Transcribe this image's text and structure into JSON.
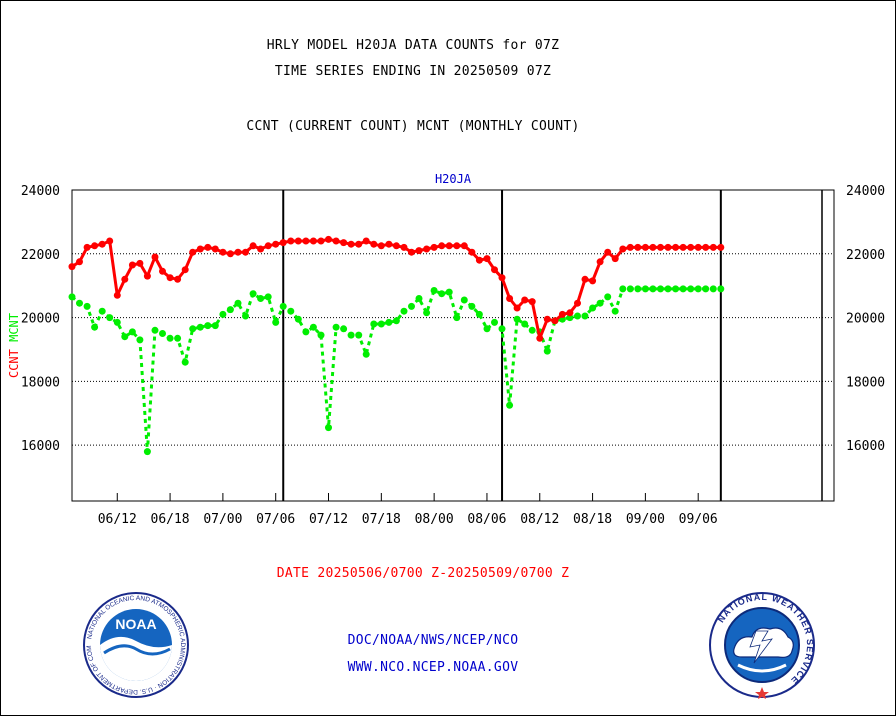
{
  "header": {
    "title_line1": "HRLY MODEL H20JA DATA COUNTS for 07Z",
    "title_line2": "TIME SERIES ENDING IN 20250509 07Z",
    "subtitle": "CCNT (CURRENT COUNT) MCNT (MONTHLY COUNT)"
  },
  "footer": {
    "date_range": "DATE 20250506/0700 Z-20250509/0700 Z",
    "org_path": "DOC/NOAA/NWS/NCEP/NCO",
    "website": "WWW.NCO.NCEP.NOAA.GOV"
  },
  "logos": {
    "left": {
      "name": "noaa-logo",
      "text": "NOAA",
      "ring_text": "NATIONAL OCEANIC AND ATMOSPHERIC ADMINISTRATION · U.S. DEPARTMENT OF COMMERCE"
    },
    "right": {
      "name": "nws-logo",
      "ring_text": "NATIONAL WEATHER SERVICE"
    }
  },
  "colors": {
    "ccnt": "#ff0000",
    "mcnt": "#00ee00",
    "axis_title": "#0000cc",
    "footer_red": "#ff0000",
    "footer_blue": "#0000cc"
  },
  "chart_data": {
    "type": "line",
    "title": "H20JA",
    "ylabel_ccnt": "CCNT",
    "ylabel_mcnt": "MCNT",
    "ylim": [
      14250,
      24000
    ],
    "yticks": [
      16000,
      18000,
      20000,
      22000,
      24000
    ],
    "yticks_right": [
      16000,
      18000,
      20000,
      22000,
      24000
    ],
    "xlim": [
      0,
      101
    ],
    "xticks": [
      {
        "label": "06/12",
        "pos": 6
      },
      {
        "label": "06/18",
        "pos": 13
      },
      {
        "label": "07/00",
        "pos": 20
      },
      {
        "label": "07/06",
        "pos": 27
      },
      {
        "label": "07/12",
        "pos": 34
      },
      {
        "label": "07/18",
        "pos": 41
      },
      {
        "label": "08/00",
        "pos": 48
      },
      {
        "label": "08/06",
        "pos": 55
      },
      {
        "label": "08/12",
        "pos": 62
      },
      {
        "label": "08/18",
        "pos": 69
      },
      {
        "label": "09/00",
        "pos": 76
      },
      {
        "label": "09/06",
        "pos": 83
      }
    ],
    "day_boundaries": [
      28,
      57,
      86
    ],
    "grid": "horizontal-dotted",
    "series": [
      {
        "name": "CCNT",
        "color": "#ff0000",
        "style": "solid",
        "x": [
          0,
          1,
          2,
          3,
          4,
          5,
          6,
          7,
          8,
          9,
          10,
          11,
          12,
          13,
          14,
          15,
          16,
          17,
          18,
          19,
          20,
          21,
          22,
          23,
          24,
          25,
          26,
          27,
          28,
          29,
          30,
          31,
          32,
          33,
          34,
          35,
          36,
          37,
          38,
          39,
          40,
          41,
          42,
          43,
          44,
          45,
          46,
          47,
          48,
          49,
          50,
          51,
          52,
          53,
          54,
          55,
          56,
          57,
          58,
          59,
          60,
          61,
          62,
          63,
          64,
          65,
          66,
          67,
          68,
          69,
          70,
          71,
          72,
          73,
          74,
          75,
          76,
          77,
          78,
          79,
          80,
          81,
          82,
          83,
          84,
          85,
          86
        ],
        "y": [
          21600,
          21750,
          22200,
          22250,
          22300,
          22400,
          20700,
          21200,
          21650,
          21700,
          21300,
          21900,
          21450,
          21250,
          21200,
          21500,
          22050,
          22150,
          22200,
          22150,
          22050,
          22000,
          22050,
          22050,
          22250,
          22150,
          22250,
          22300,
          22350,
          22400,
          22400,
          22400,
          22400,
          22400,
          22450,
          22400,
          22350,
          22300,
          22300,
          22400,
          22300,
          22250,
          22300,
          22250,
          22200,
          22050,
          22100,
          22150,
          22200,
          22250,
          22250,
          22250,
          22250,
          22050,
          21800,
          21850,
          21500,
          21250,
          20600,
          20300,
          20550,
          20500,
          19350,
          19950,
          19900,
          20100,
          20150,
          20450,
          21200,
          21150,
          21750,
          22050,
          21850,
          22150,
          22200,
          22200,
          22200,
          22200,
          22200,
          22200,
          22200,
          22200,
          22200,
          22200,
          22200,
          22200,
          22200
        ]
      },
      {
        "name": "MCNT",
        "color": "#00ee00",
        "style": "dashed",
        "x": [
          0,
          1,
          2,
          3,
          4,
          5,
          6,
          7,
          8,
          9,
          10,
          11,
          12,
          13,
          14,
          15,
          16,
          17,
          18,
          19,
          20,
          21,
          22,
          23,
          24,
          25,
          26,
          27,
          28,
          29,
          30,
          31,
          32,
          33,
          34,
          35,
          36,
          37,
          38,
          39,
          40,
          41,
          42,
          43,
          44,
          45,
          46,
          47,
          48,
          49,
          50,
          51,
          52,
          53,
          54,
          55,
          56,
          57,
          58,
          59,
          60,
          61,
          62,
          63,
          64,
          65,
          66,
          67,
          68,
          69,
          70,
          71,
          72,
          73,
          74,
          75,
          76,
          77,
          78,
          79,
          80,
          81,
          82,
          83,
          84,
          85,
          86
        ],
        "y": [
          20650,
          20450,
          20350,
          19700,
          20200,
          20000,
          19850,
          19400,
          19550,
          19300,
          15800,
          19600,
          19500,
          19350,
          19350,
          18600,
          19650,
          19700,
          19750,
          19750,
          20100,
          20250,
          20450,
          20050,
          20750,
          20600,
          20650,
          19850,
          20350,
          20200,
          19950,
          19550,
          19700,
          19450,
          16550,
          19700,
          19650,
          19450,
          19450,
          18850,
          19800,
          19800,
          19850,
          19900,
          20200,
          20350,
          20600,
          20150,
          20850,
          20750,
          20800,
          20000,
          20550,
          20350,
          20100,
          19650,
          19850,
          19650,
          17250,
          19950,
          19800,
          19600,
          19550,
          18950,
          19900,
          19950,
          20000,
          20050,
          20050,
          20300,
          20450,
          20650,
          20200,
          20900,
          20900,
          20900,
          20900,
          20900,
          20900,
          20900,
          20900,
          20900,
          20900,
          20900,
          20900,
          20900,
          20900
        ]
      }
    ]
  }
}
